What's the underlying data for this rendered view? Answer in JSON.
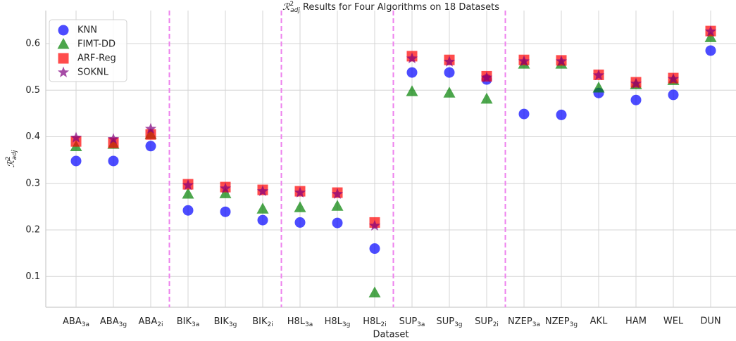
{
  "chart_data": {
    "type": "scatter",
    "title": "ℛ2adj Results for Four Algorithms on 18 Datasets",
    "x_label": "Dataset",
    "y_label": "ℛ2adj",
    "categories": [
      "ABA3a",
      "ABA3g",
      "ABA2i",
      "BIK3a",
      "BIK3g",
      "BIK2i",
      "H8L3a",
      "H8L3g",
      "H8L2i",
      "SUP3a",
      "SUP3g",
      "SUP2i",
      "NZEP3a",
      "NZEP3g",
      "AKL",
      "HAM",
      "WEL",
      "DUN"
    ],
    "series": [
      {
        "name": "KNN",
        "color": "#0000ff",
        "marker": "circle",
        "values": [
          0.348,
          0.348,
          0.38,
          0.242,
          0.239,
          0.221,
          0.216,
          0.215,
          0.16,
          0.538,
          0.538,
          0.523,
          0.449,
          0.447,
          0.494,
          0.479,
          0.49,
          0.585
        ]
      },
      {
        "name": "FIMT-DD",
        "color": "#008000",
        "marker": "triangle",
        "values": [
          0.379,
          0.384,
          0.405,
          0.277,
          0.278,
          0.245,
          0.248,
          0.251,
          0.065,
          0.497,
          0.494,
          0.481,
          0.556,
          0.556,
          0.505,
          0.512,
          0.521,
          0.613
        ]
      },
      {
        "name": "ARF-Reg",
        "color": "#ff0000",
        "marker": "square",
        "values": [
          0.39,
          0.387,
          0.405,
          0.298,
          0.292,
          0.286,
          0.283,
          0.28,
          0.216,
          0.573,
          0.565,
          0.53,
          0.565,
          0.564,
          0.533,
          0.517,
          0.526,
          0.627
        ]
      },
      {
        "name": "SOKNL",
        "color": "#800080",
        "marker": "star",
        "values": [
          0.398,
          0.395,
          0.417,
          0.296,
          0.289,
          0.283,
          0.28,
          0.277,
          0.209,
          0.568,
          0.561,
          0.527,
          0.562,
          0.562,
          0.532,
          0.514,
          0.524,
          0.626
        ]
      }
    ],
    "alpha": 0.7,
    "separators": [
      2.5,
      5.5,
      8.5,
      11.5
    ],
    "separator_color": "#ee82ee",
    "ylim": [
      0.034,
      0.671
    ],
    "yticks": [
      0.1,
      0.2,
      0.3,
      0.4,
      0.5,
      0.6
    ],
    "grid": true,
    "legend": "upper left"
  }
}
